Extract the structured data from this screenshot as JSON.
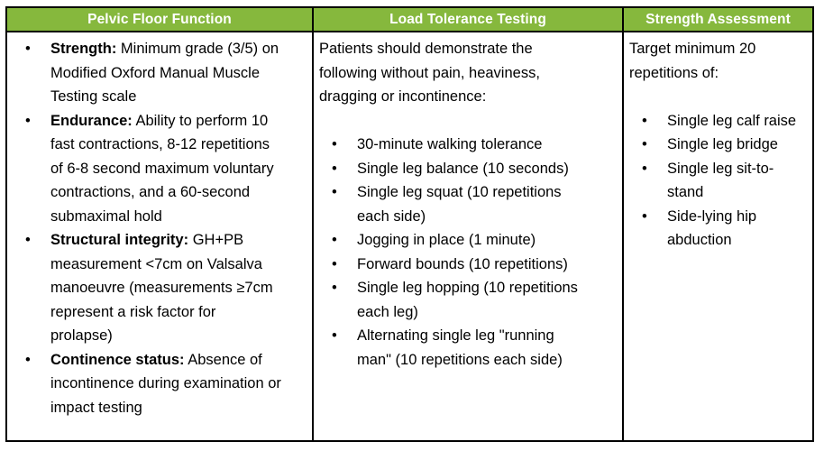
{
  "table": {
    "colors": {
      "header_bg": "#86B83D",
      "header_text": "#FFFFFF",
      "border": "#000000",
      "body_text": "#000000"
    },
    "columns": [
      {
        "header": "Pelvic Floor Function",
        "items": [
          {
            "lead": "Strength:",
            "rest": " Minimum grade (3/5) on Modified Oxford Manual Muscle Testing scale"
          },
          {
            "lead": "Endurance:",
            "rest": " Ability to perform 10 fast contractions, 8-12 repetitions of 6-8 second maximum voluntary contractions, and a 60-second submaximal hold"
          },
          {
            "lead": "Structural integrity:",
            "rest": " GH+PB measurement <7cm on Valsalva manoeuvre (measurements ≥7cm represent a risk factor for prolapse)"
          },
          {
            "lead": "Continence status:",
            "rest": " Absence of incontinence during examination or impact testing"
          }
        ]
      },
      {
        "header": "Load Tolerance Testing",
        "intro": "Patients should demonstrate the following without pain, heaviness, dragging or incontinence:",
        "items": [
          "30-minute walking tolerance",
          "Single leg balance (10 seconds)",
          "Single leg squat (10 repetitions each side)",
          "Jogging in place (1 minute)",
          "Forward bounds (10 repetitions)",
          "Single leg hopping (10 repetitions each leg)",
          "Alternating single leg \"running man\" (10 repetitions each side)"
        ]
      },
      {
        "header": "Strength Assessment",
        "intro": "Target minimum 20 repetitions of:",
        "items": [
          "Single leg calf raise",
          "Single leg bridge",
          "Single leg sit-to-stand",
          "Side-lying hip abduction"
        ]
      }
    ]
  }
}
